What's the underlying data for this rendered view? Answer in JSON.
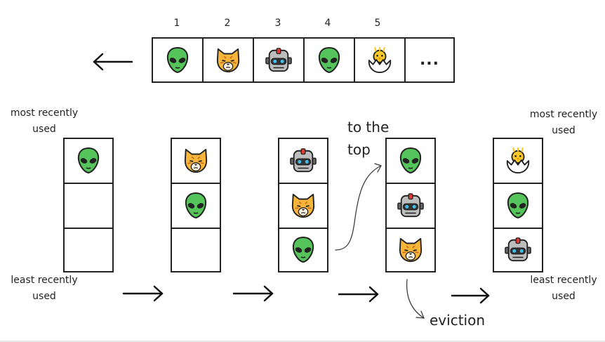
{
  "sequence": {
    "indices": [
      "1",
      "2",
      "3",
      "4",
      "5"
    ],
    "items": [
      "alien",
      "cat",
      "robot",
      "alien",
      "chick"
    ],
    "more_label": "..."
  },
  "labels": {
    "most_recently_used": "most recently used",
    "least_recently_used": "least recently used",
    "to_the_top": "to the top",
    "eviction": "eviction"
  },
  "stacks": [
    [
      "alien",
      "",
      ""
    ],
    [
      "cat",
      "alien",
      ""
    ],
    [
      "robot",
      "cat",
      "alien"
    ],
    [
      "alien",
      "robot",
      "cat"
    ],
    [
      "chick",
      "alien",
      "robot"
    ]
  ]
}
